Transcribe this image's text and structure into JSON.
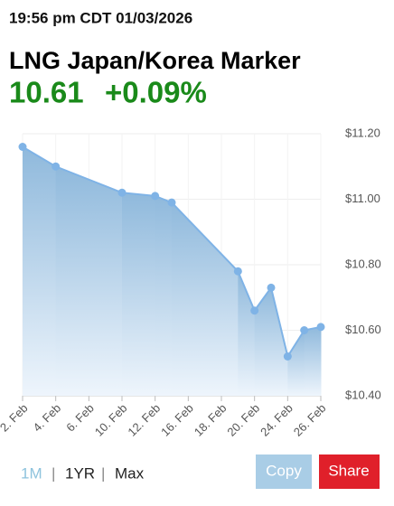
{
  "header": {
    "timestamp": "19:56 pm CDT 01/03/2026",
    "title": "LNG Japan/Korea Marker",
    "price": "10.61",
    "change": "+0.09%"
  },
  "chart_data": {
    "type": "area",
    "categories": [
      "2. Feb",
      null,
      "4. Feb",
      null,
      "6. Feb",
      null,
      "10. Feb",
      null,
      "12. Feb",
      null,
      "16. Feb",
      null,
      "18. Feb",
      null,
      "20. Feb",
      null,
      "24. Feb",
      null,
      "26. Feb"
    ],
    "values": [
      11.16,
      null,
      11.1,
      null,
      null,
      null,
      11.02,
      null,
      11.01,
      10.99,
      null,
      null,
      null,
      10.78,
      10.66,
      10.73,
      10.52,
      10.6,
      10.61
    ],
    "color": "#7fb3e6",
    "ylim": [
      10.4,
      11.2
    ],
    "yticks": [
      {
        "value": 10.4,
        "label": "$10.40"
      },
      {
        "value": 10.6,
        "label": "$10.60"
      },
      {
        "value": 10.8,
        "label": "$10.80"
      },
      {
        "value": 11.0,
        "label": "$11.00"
      },
      {
        "value": 11.2,
        "label": "$11.20"
      }
    ],
    "grid": true
  },
  "controls": {
    "tabs": [
      "1M",
      "1YR",
      "Max"
    ],
    "separator": "|",
    "copy": "Copy",
    "share": "Share"
  }
}
